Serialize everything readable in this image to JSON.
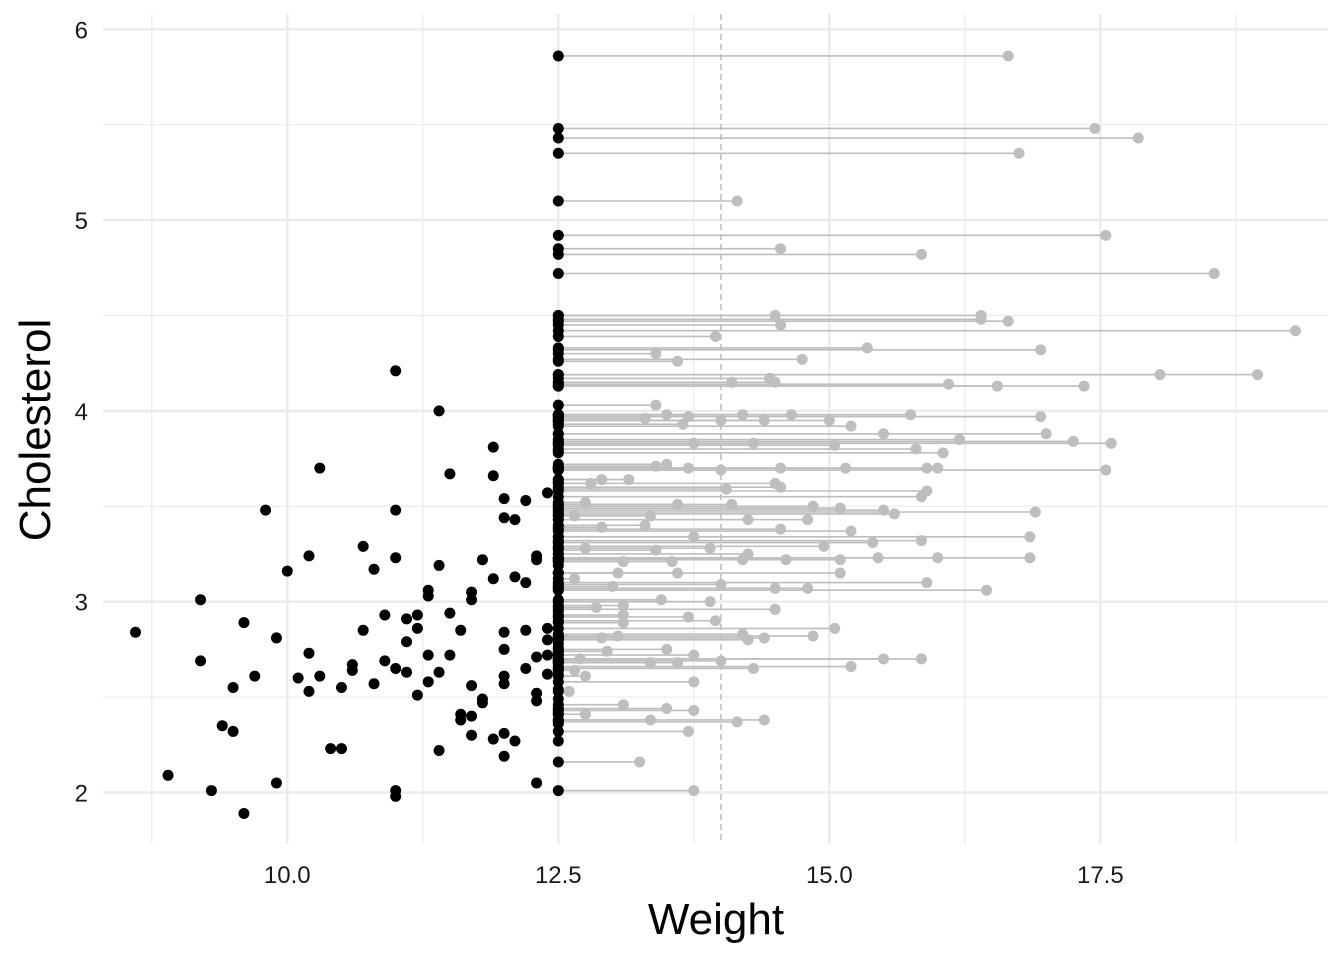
{
  "chart_data": {
    "type": "scatter",
    "title": "",
    "xlabel": "Weight",
    "ylabel": "Cholesterol",
    "xlim": [
      8.3,
      19.6
    ],
    "ylim": [
      1.73,
      6.08
    ],
    "x_ticks": [
      10.0,
      12.5,
      15.0,
      17.5
    ],
    "x_tick_labels": [
      "10.0",
      "12.5",
      "15.0",
      "17.5"
    ],
    "y_ticks": [
      2,
      3,
      4,
      5,
      6
    ],
    "y_tick_labels": [
      "2",
      "3",
      "4",
      "5",
      "6"
    ],
    "x_minor_ticks": [
      8.75,
      11.25,
      13.75,
      16.25,
      18.75
    ],
    "y_minor_ticks": [
      2.5,
      3.5,
      4.5,
      5.5
    ],
    "grid": true,
    "legend": "none",
    "reference_line": {
      "x": 14.0,
      "style": "dashed",
      "color": "#bdbdbd"
    },
    "colors": {
      "below": "#000000",
      "censored_original": "#bebebe",
      "segment": "#bebebe",
      "grid": "#ebebeb"
    },
    "censor_threshold": 12.5,
    "series": [
      {
        "role": "below-threshold",
        "points": [
          [
            8.6,
            2.84
          ],
          [
            8.9,
            2.09
          ],
          [
            9.2,
            2.69
          ],
          [
            9.2,
            3.01
          ],
          [
            9.3,
            2.01
          ],
          [
            9.4,
            2.35
          ],
          [
            9.5,
            2.55
          ],
          [
            9.5,
            2.32
          ],
          [
            9.6,
            2.89
          ],
          [
            9.6,
            1.89
          ],
          [
            9.7,
            2.61
          ],
          [
            9.8,
            3.48
          ],
          [
            9.9,
            2.81
          ],
          [
            9.9,
            2.05
          ],
          [
            10.0,
            3.16
          ],
          [
            10.1,
            2.6
          ],
          [
            10.2,
            3.24
          ],
          [
            10.2,
            2.73
          ],
          [
            10.2,
            2.53
          ],
          [
            10.3,
            2.61
          ],
          [
            10.3,
            3.7
          ],
          [
            10.4,
            2.23
          ],
          [
            10.5,
            2.23
          ],
          [
            10.5,
            2.55
          ],
          [
            10.6,
            2.64
          ],
          [
            10.6,
            2.67
          ],
          [
            10.7,
            2.85
          ],
          [
            10.7,
            3.29
          ],
          [
            10.8,
            3.17
          ],
          [
            10.8,
            2.57
          ],
          [
            10.9,
            2.93
          ],
          [
            10.9,
            2.69
          ],
          [
            11.0,
            3.48
          ],
          [
            11.0,
            3.23
          ],
          [
            11.0,
            2.01
          ],
          [
            11.0,
            1.98
          ],
          [
            11.0,
            4.21
          ],
          [
            11.0,
            2.65
          ],
          [
            11.1,
            2.91
          ],
          [
            11.1,
            2.63
          ],
          [
            11.1,
            2.79
          ],
          [
            11.2,
            2.86
          ],
          [
            11.2,
            2.93
          ],
          [
            11.2,
            2.51
          ],
          [
            11.3,
            3.06
          ],
          [
            11.3,
            3.03
          ],
          [
            11.3,
            2.72
          ],
          [
            11.3,
            2.58
          ],
          [
            11.4,
            3.19
          ],
          [
            11.4,
            2.22
          ],
          [
            11.4,
            2.63
          ],
          [
            11.4,
            4.0
          ],
          [
            11.5,
            2.94
          ],
          [
            11.5,
            2.72
          ],
          [
            11.5,
            3.67
          ],
          [
            11.6,
            2.38
          ],
          [
            11.6,
            2.41
          ],
          [
            11.6,
            2.85
          ],
          [
            11.7,
            3.01
          ],
          [
            11.7,
            3.05
          ],
          [
            11.7,
            2.56
          ],
          [
            11.7,
            2.4
          ],
          [
            11.7,
            2.3
          ],
          [
            11.8,
            3.22
          ],
          [
            11.8,
            2.47
          ],
          [
            11.8,
            2.49
          ],
          [
            11.9,
            3.81
          ],
          [
            11.9,
            3.12
          ],
          [
            11.9,
            3.66
          ],
          [
            11.9,
            2.28
          ],
          [
            12.0,
            2.57
          ],
          [
            12.0,
            3.44
          ],
          [
            12.0,
            2.31
          ],
          [
            12.0,
            2.75
          ],
          [
            12.0,
            2.19
          ],
          [
            12.0,
            2.61
          ],
          [
            12.0,
            2.84
          ],
          [
            12.0,
            3.54
          ],
          [
            12.1,
            3.13
          ],
          [
            12.1,
            2.27
          ],
          [
            12.1,
            3.43
          ],
          [
            12.2,
            3.1
          ],
          [
            12.2,
            2.65
          ],
          [
            12.2,
            2.85
          ],
          [
            12.2,
            3.53
          ],
          [
            12.3,
            2.71
          ],
          [
            12.3,
            2.05
          ],
          [
            12.3,
            3.22
          ],
          [
            12.3,
            3.24
          ],
          [
            12.3,
            2.52
          ],
          [
            12.3,
            2.48
          ],
          [
            12.4,
            3.57
          ],
          [
            12.4,
            2.8
          ],
          [
            12.4,
            2.86
          ],
          [
            12.4,
            2.72
          ],
          [
            12.4,
            2.62
          ],
          [
            12.5,
            3.19
          ],
          [
            12.5,
            3.25
          ],
          [
            12.5,
            2.36
          ],
          [
            12.5,
            2.72
          ],
          [
            12.5,
            2.42
          ],
          [
            12.5,
            2.27
          ],
          [
            12.5,
            2.68
          ],
          [
            12.5,
            2.92
          ],
          [
            12.5,
            2.95
          ],
          [
            12.5,
            2.49
          ],
          [
            12.5,
            2.8
          ],
          [
            12.5,
            2.65
          ],
          [
            12.5,
            3.31
          ],
          [
            12.5,
            3.79
          ],
          [
            12.5,
            2.78
          ],
          [
            12.5,
            2.73
          ],
          [
            12.5,
            2.62
          ],
          [
            12.5,
            2.54
          ],
          [
            12.5,
            3.0
          ],
          [
            12.5,
            2.69
          ],
          [
            12.5,
            2.76
          ],
          [
            12.5,
            3.15
          ],
          [
            12.5,
            3.63
          ],
          [
            12.5,
            3.94
          ],
          [
            12.5,
            2.41
          ]
        ]
      },
      {
        "role": "censored-at-12.5",
        "pairs": [
          [
            16.65,
            5.86
          ],
          [
            17.45,
            5.48
          ],
          [
            17.85,
            5.43
          ],
          [
            16.75,
            5.35
          ],
          [
            14.15,
            5.1
          ],
          [
            17.55,
            4.92
          ],
          [
            14.55,
            4.85
          ],
          [
            15.85,
            4.82
          ],
          [
            18.55,
            4.72
          ],
          [
            14.5,
            4.5
          ],
          [
            16.4,
            4.5
          ],
          [
            16.4,
            4.48
          ],
          [
            16.65,
            4.47
          ],
          [
            14.55,
            4.45
          ],
          [
            19.3,
            4.42
          ],
          [
            13.95,
            4.39
          ],
          [
            15.35,
            4.33
          ],
          [
            16.95,
            4.32
          ],
          [
            13.4,
            4.3
          ],
          [
            14.75,
            4.27
          ],
          [
            13.6,
            4.26
          ],
          [
            18.05,
            4.19
          ],
          [
            18.95,
            4.19
          ],
          [
            14.45,
            4.17
          ],
          [
            14.5,
            4.15
          ],
          [
            14.1,
            4.15
          ],
          [
            16.1,
            4.14
          ],
          [
            16.55,
            4.13
          ],
          [
            17.35,
            4.13
          ],
          [
            13.4,
            4.03
          ],
          [
            13.5,
            3.98
          ],
          [
            13.7,
            3.97
          ],
          [
            14.2,
            3.98
          ],
          [
            14.65,
            3.98
          ],
          [
            15.75,
            3.98
          ],
          [
            16.95,
            3.97
          ],
          [
            13.3,
            3.96
          ],
          [
            14.0,
            3.95
          ],
          [
            14.4,
            3.95
          ],
          [
            15.0,
            3.95
          ],
          [
            13.65,
            3.93
          ],
          [
            15.2,
            3.92
          ],
          [
            15.5,
            3.88
          ],
          [
            17.0,
            3.88
          ],
          [
            16.2,
            3.85
          ],
          [
            17.25,
            3.84
          ],
          [
            13.75,
            3.83
          ],
          [
            14.3,
            3.83
          ],
          [
            15.05,
            3.82
          ],
          [
            15.8,
            3.8
          ],
          [
            17.6,
            3.83
          ],
          [
            16.05,
            3.78
          ],
          [
            13.4,
            3.71
          ],
          [
            13.5,
            3.72
          ],
          [
            13.7,
            3.7
          ],
          [
            14.0,
            3.69
          ],
          [
            14.55,
            3.7
          ],
          [
            15.15,
            3.7
          ],
          [
            15.9,
            3.7
          ],
          [
            16.0,
            3.7
          ],
          [
            17.55,
            3.69
          ],
          [
            13.15,
            3.64
          ],
          [
            12.9,
            3.64
          ],
          [
            12.8,
            3.62
          ],
          [
            14.05,
            3.59
          ],
          [
            14.5,
            3.62
          ],
          [
            14.55,
            3.6
          ],
          [
            15.9,
            3.58
          ],
          [
            15.85,
            3.55
          ],
          [
            12.75,
            3.52
          ],
          [
            13.6,
            3.51
          ],
          [
            14.1,
            3.51
          ],
          [
            14.85,
            3.5
          ],
          [
            15.1,
            3.49
          ],
          [
            15.5,
            3.48
          ],
          [
            15.6,
            3.46
          ],
          [
            16.9,
            3.47
          ],
          [
            12.65,
            3.45
          ],
          [
            13.35,
            3.45
          ],
          [
            14.25,
            3.43
          ],
          [
            14.8,
            3.43
          ],
          [
            13.3,
            3.4
          ],
          [
            12.9,
            3.39
          ],
          [
            14.55,
            3.38
          ],
          [
            15.2,
            3.37
          ],
          [
            16.85,
            3.34
          ],
          [
            13.75,
            3.34
          ],
          [
            15.85,
            3.32
          ],
          [
            15.4,
            3.31
          ],
          [
            14.95,
            3.29
          ],
          [
            13.9,
            3.28
          ],
          [
            12.75,
            3.28
          ],
          [
            13.4,
            3.27
          ],
          [
            14.25,
            3.25
          ],
          [
            16.0,
            3.23
          ],
          [
            16.85,
            3.23
          ],
          [
            15.45,
            3.23
          ],
          [
            15.1,
            3.22
          ],
          [
            14.6,
            3.22
          ],
          [
            14.2,
            3.22
          ],
          [
            13.1,
            3.21
          ],
          [
            13.55,
            3.21
          ],
          [
            15.1,
            3.15
          ],
          [
            13.05,
            3.15
          ],
          [
            13.6,
            3.15
          ],
          [
            12.65,
            3.12
          ],
          [
            14.0,
            3.09
          ],
          [
            15.9,
            3.1
          ],
          [
            13.0,
            3.08
          ],
          [
            14.5,
            3.07
          ],
          [
            14.8,
            3.07
          ],
          [
            16.45,
            3.06
          ],
          [
            13.45,
            3.01
          ],
          [
            13.9,
            3.0
          ],
          [
            13.1,
            2.98
          ],
          [
            12.85,
            2.97
          ],
          [
            14.5,
            2.96
          ],
          [
            13.7,
            2.92
          ],
          [
            13.1,
            2.93
          ],
          [
            13.95,
            2.9
          ],
          [
            13.1,
            2.89
          ],
          [
            15.05,
            2.86
          ],
          [
            14.2,
            2.83
          ],
          [
            14.85,
            2.82
          ],
          [
            13.05,
            2.82
          ],
          [
            14.4,
            2.81
          ],
          [
            14.25,
            2.8
          ],
          [
            12.9,
            2.81
          ],
          [
            13.5,
            2.75
          ],
          [
            13.75,
            2.72
          ],
          [
            12.95,
            2.74
          ],
          [
            14.0,
            2.69
          ],
          [
            15.5,
            2.7
          ],
          [
            15.85,
            2.7
          ],
          [
            12.7,
            2.7
          ],
          [
            13.35,
            2.68
          ],
          [
            13.6,
            2.68
          ],
          [
            14.3,
            2.65
          ],
          [
            15.2,
            2.66
          ],
          [
            12.65,
            2.64
          ],
          [
            12.75,
            2.61
          ],
          [
            13.75,
            2.58
          ],
          [
            12.6,
            2.53
          ],
          [
            13.1,
            2.46
          ],
          [
            13.5,
            2.44
          ],
          [
            13.75,
            2.43
          ],
          [
            12.75,
            2.41
          ],
          [
            13.35,
            2.38
          ],
          [
            14.4,
            2.38
          ],
          [
            14.15,
            2.37
          ],
          [
            13.7,
            2.32
          ],
          [
            13.25,
            2.16
          ],
          [
            13.75,
            2.01
          ]
        ]
      }
    ]
  }
}
